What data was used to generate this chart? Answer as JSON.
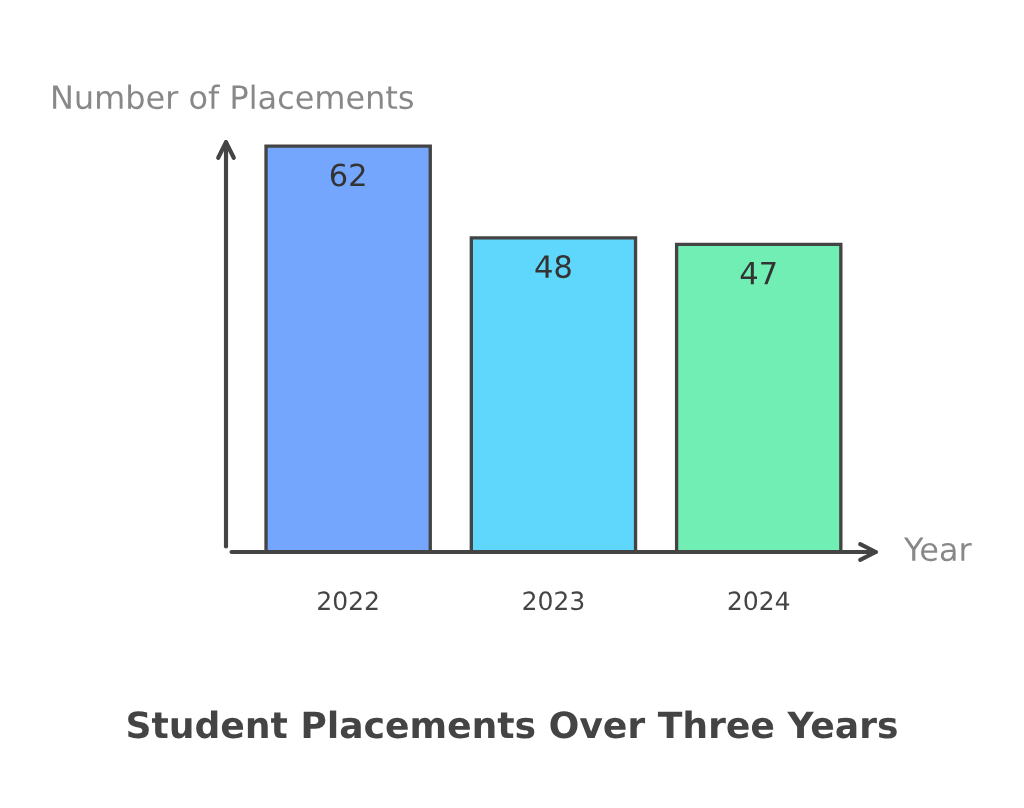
{
  "chart_data": {
    "type": "bar",
    "title": "Student Placements Over Three Years",
    "xlabel": "Year",
    "ylabel": "Number of Placements",
    "categories": [
      "2022",
      "2023",
      "2024"
    ],
    "values": [
      62,
      48,
      47
    ],
    "colors": [
      "#74a6fd",
      "#5fd6fb",
      "#70eeb4"
    ],
    "data_labels": true,
    "grid": false,
    "legend": false
  }
}
